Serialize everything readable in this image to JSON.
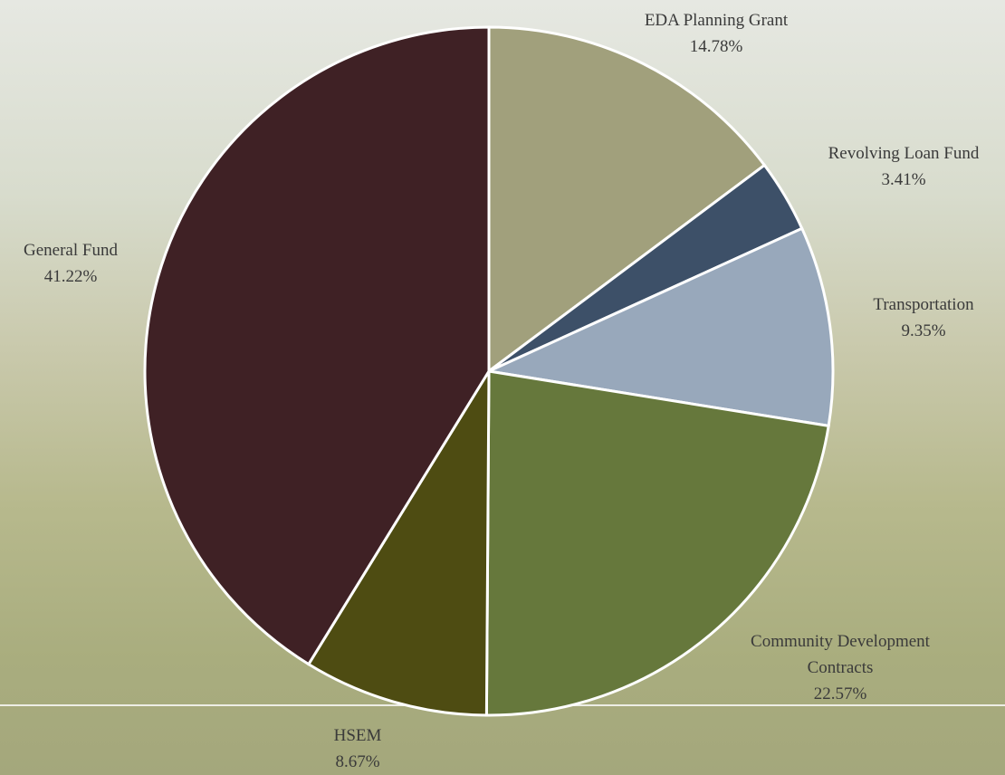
{
  "chart_data": {
    "type": "pie",
    "categories": [
      "EDA Planning Grant",
      "Revolving Loan Fund",
      "Transportation",
      "Community Development Contracts",
      "HSEM",
      "General Fund"
    ],
    "values": [
      14.78,
      3.41,
      9.35,
      22.57,
      8.67,
      41.22
    ],
    "value_labels": [
      "14.78%",
      "3.41%",
      "9.35%",
      "22.57%",
      "8.67%",
      "41.22%"
    ],
    "colors": [
      "#a1a07c",
      "#3d5068",
      "#98a8bb",
      "#66783c",
      "#4e4c12",
      "#3f2125"
    ]
  }
}
